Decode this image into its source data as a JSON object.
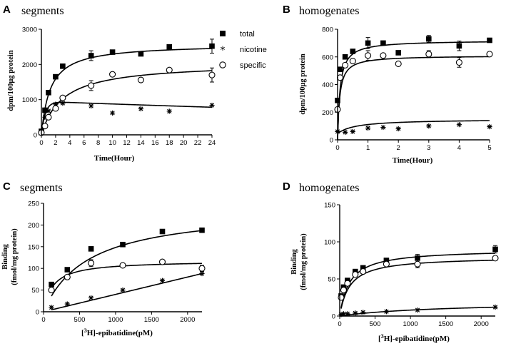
{
  "chart_data": [
    {
      "type": "scatter",
      "panel": "A",
      "title": "segments",
      "xlabel": "Time(Hour)",
      "ylabel": "dpm/100μg protein",
      "xlim": [
        0,
        24
      ],
      "ylim": [
        0,
        3000
      ],
      "xticks": [
        0,
        2,
        4,
        6,
        8,
        10,
        12,
        14,
        16,
        18,
        20,
        22,
        24
      ],
      "yticks": [
        0,
        1000,
        2000,
        3000
      ],
      "legend_position": "top-right",
      "series": [
        {
          "name": "total",
          "marker": "square",
          "x": [
            0,
            0.5,
            1,
            2,
            3,
            7,
            10,
            14,
            18,
            24
          ],
          "y": [
            100,
            700,
            1200,
            1650,
            1950,
            2250,
            2350,
            2300,
            2500,
            2520
          ],
          "err": [
            0,
            0,
            0,
            0,
            0,
            140,
            0,
            0,
            0,
            200
          ],
          "fit": {
            "model": "saturation",
            "bmax": 2580,
            "k": 1.25,
            "base": 0
          }
        },
        {
          "name": "nicotine",
          "marker": "asterisk",
          "x": [
            0,
            0.5,
            1,
            2,
            3,
            7,
            10,
            14,
            18,
            24
          ],
          "y": [
            80,
            500,
            680,
            870,
            900,
            820,
            620,
            740,
            670,
            840
          ],
          "err": [
            0,
            0,
            0,
            0,
            0,
            0,
            0,
            0,
            0,
            0
          ],
          "fit": {
            "model": "rise-decay",
            "a": 950,
            "k": 0.55,
            "decay": 0.008
          }
        },
        {
          "name": "specific",
          "marker": "circle",
          "x": [
            0,
            0.5,
            1,
            2,
            3,
            7,
            10,
            14,
            18,
            24
          ],
          "y": [
            60,
            250,
            500,
            750,
            1050,
            1400,
            1720,
            1560,
            1840,
            1700
          ],
          "err": [
            0,
            0,
            0,
            0,
            0,
            140,
            0,
            0,
            0,
            200
          ],
          "fit": {
            "model": "saturation",
            "bmax": 2050,
            "k": 3.0,
            "base": 0
          }
        }
      ]
    },
    {
      "type": "scatter",
      "panel": "B",
      "title": "homogenates",
      "xlabel": "Time(Hour)",
      "ylabel": "dpm/100μg protein",
      "xlim": [
        0,
        5
      ],
      "ylim": [
        0,
        800
      ],
      "xticks": [
        0,
        1,
        2,
        3,
        4,
        5
      ],
      "yticks": [
        0,
        200,
        400,
        600,
        800
      ],
      "series": [
        {
          "name": "total",
          "marker": "square",
          "x": [
            0,
            0.083,
            0.25,
            0.5,
            1,
            1.5,
            2,
            3,
            4,
            5
          ],
          "y": [
            285,
            510,
            600,
            640,
            700,
            700,
            630,
            730,
            680,
            720
          ],
          "err": [
            0,
            0,
            0,
            0,
            40,
            0,
            0,
            25,
            35,
            0
          ],
          "fit": {
            "model": "saturation",
            "bmax": 720,
            "k": 0.08,
            "base": 0
          }
        },
        {
          "name": "nicotine",
          "marker": "asterisk",
          "x": [
            0,
            0.25,
            0.5,
            1,
            1.5,
            2,
            3,
            4,
            5
          ],
          "y": [
            60,
            55,
            60,
            85,
            90,
            80,
            100,
            110,
            95
          ],
          "err": [
            0,
            0,
            0,
            0,
            0,
            0,
            0,
            0,
            0
          ],
          "fit": {
            "model": "saturation",
            "bmax": 105,
            "k": 0.6,
            "base": 45
          }
        },
        {
          "name": "specific",
          "marker": "circle",
          "x": [
            0,
            0.083,
            0.25,
            0.5,
            1,
            1.5,
            2,
            3,
            4,
            5
          ],
          "y": [
            220,
            450,
            540,
            570,
            610,
            610,
            550,
            620,
            560,
            620
          ],
          "err": [
            0,
            0,
            0,
            0,
            35,
            0,
            0,
            25,
            35,
            0
          ],
          "fit": {
            "model": "saturation",
            "bmax": 610,
            "k": 0.07,
            "base": 0
          }
        }
      ]
    },
    {
      "type": "scatter",
      "panel": "C",
      "title": "segments",
      "xlabel": "[3H]-epibatidine(pM)",
      "ylabel_line1": "Binding",
      "ylabel_line2": "(fmol/mg protein)",
      "xlim": [
        0,
        2200
      ],
      "ylim": [
        0,
        250
      ],
      "xticks": [
        0,
        500,
        1000,
        1500,
        2000
      ],
      "yticks": [
        0,
        50,
        100,
        150,
        200,
        250
      ],
      "series": [
        {
          "name": "total",
          "marker": "square",
          "x": [
            110,
            330,
            660,
            1100,
            1650,
            2200
          ],
          "y": [
            63,
            97,
            145,
            155,
            185,
            188
          ],
          "err": [
            0,
            0,
            0,
            0,
            0,
            0
          ],
          "fit": {
            "model": "saturation",
            "bmax": 240,
            "k": 620,
            "base": 0
          }
        },
        {
          "name": "nicotine",
          "marker": "asterisk",
          "x": [
            110,
            330,
            660,
            1100,
            1650,
            2200
          ],
          "y": [
            10,
            18,
            32,
            50,
            72,
            88
          ],
          "err": [
            0,
            0,
            0,
            0,
            0,
            0
          ],
          "fit": {
            "model": "linear",
            "slope": 0.04,
            "intercept": 0
          }
        },
        {
          "name": "specific",
          "marker": "circle",
          "x": [
            110,
            330,
            660,
            1100,
            1650,
            2200
          ],
          "y": [
            50,
            80,
            112,
            107,
            115,
            100
          ],
          "err": [
            0,
            0,
            8,
            0,
            0,
            7
          ],
          "fit": {
            "model": "saturation",
            "bmax": 118,
            "k": 130,
            "base": 0
          }
        }
      ]
    },
    {
      "type": "scatter",
      "panel": "D",
      "title": "homogenates",
      "xlabel": "[3H]-epibatidine(pM)",
      "ylabel_line1": "Binding",
      "ylabel_line2": "(fmol/mg protein)",
      "xlim": [
        0,
        2200
      ],
      "ylim": [
        0,
        150
      ],
      "xticks": [
        0,
        500,
        1000,
        1500,
        2000
      ],
      "yticks": [
        0,
        50,
        100,
        150
      ],
      "series": [
        {
          "name": "total",
          "marker": "square",
          "x": [
            20,
            55,
            110,
            220,
            330,
            660,
            1100,
            2200
          ],
          "y": [
            27,
            39,
            48,
            60,
            65,
            75,
            78,
            90
          ],
          "err": [
            0,
            0,
            0,
            0,
            0,
            0,
            5,
            5
          ],
          "fit": {
            "model": "saturation",
            "bmax": 90,
            "k": 140,
            "base": 0
          }
        },
        {
          "name": "nicotine",
          "marker": "asterisk",
          "x": [
            20,
            55,
            110,
            220,
            330,
            660,
            1100,
            2200
          ],
          "y": [
            2,
            3,
            3,
            4,
            5,
            6,
            8,
            12
          ],
          "err": [
            0,
            0,
            0,
            0,
            0,
            0,
            0,
            0
          ],
          "fit": {
            "model": "saturation",
            "bmax": 20,
            "k": 1500,
            "base": 0
          }
        },
        {
          "name": "specific",
          "marker": "circle",
          "x": [
            20,
            55,
            110,
            220,
            330,
            660,
            1100,
            2200
          ],
          "y": [
            25,
            35,
            44,
            56,
            60,
            70,
            70,
            78
          ],
          "err": [
            0,
            0,
            0,
            0,
            0,
            0,
            5,
            0
          ],
          "fit": {
            "model": "saturation",
            "bmax": 80,
            "k": 140,
            "base": 0
          }
        }
      ]
    }
  ]
}
